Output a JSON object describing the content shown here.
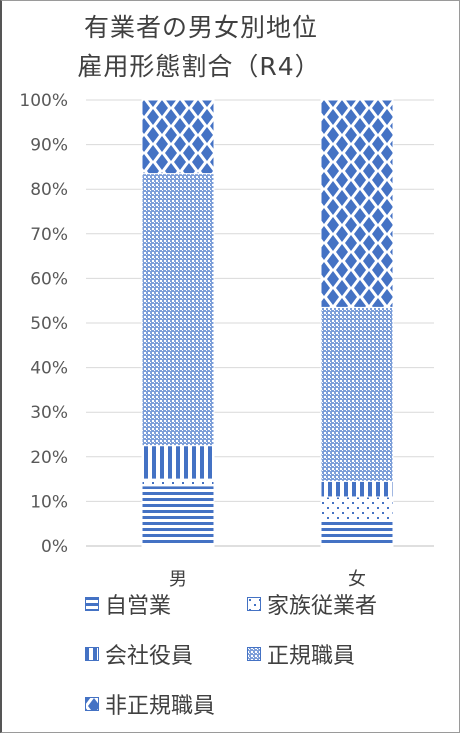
{
  "title": {
    "line1": "有業者の男女別地位",
    "line2": "雇用形態割合（R4）"
  },
  "chart_data": {
    "type": "bar",
    "stacked": true,
    "percent": true,
    "categories": [
      "男",
      "女"
    ],
    "series": [
      {
        "name": "自営業",
        "values": [
          13.5,
          5.5
        ],
        "color": "#4472c4",
        "pattern": "hlines"
      },
      {
        "name": "家族従業者",
        "values": [
          1.5,
          5.5
        ],
        "color": "#4472c4",
        "pattern": "dots"
      },
      {
        "name": "会社役員",
        "values": [
          7.5,
          3.5
        ],
        "color": "#4472c4",
        "pattern": "vlines"
      },
      {
        "name": "正規職員",
        "values": [
          61.0,
          39.0
        ],
        "color": "#4472c4",
        "pattern": "grid"
      },
      {
        "name": "非正規職員",
        "values": [
          16.5,
          46.5
        ],
        "color": "#4472c4",
        "pattern": "diamonds"
      }
    ],
    "yticks": [
      "0%",
      "10%",
      "20%",
      "30%",
      "40%",
      "50%",
      "60%",
      "70%",
      "80%",
      "90%",
      "100%"
    ],
    "ylim": [
      0,
      100
    ],
    "grid": true,
    "legend": "bottom"
  }
}
